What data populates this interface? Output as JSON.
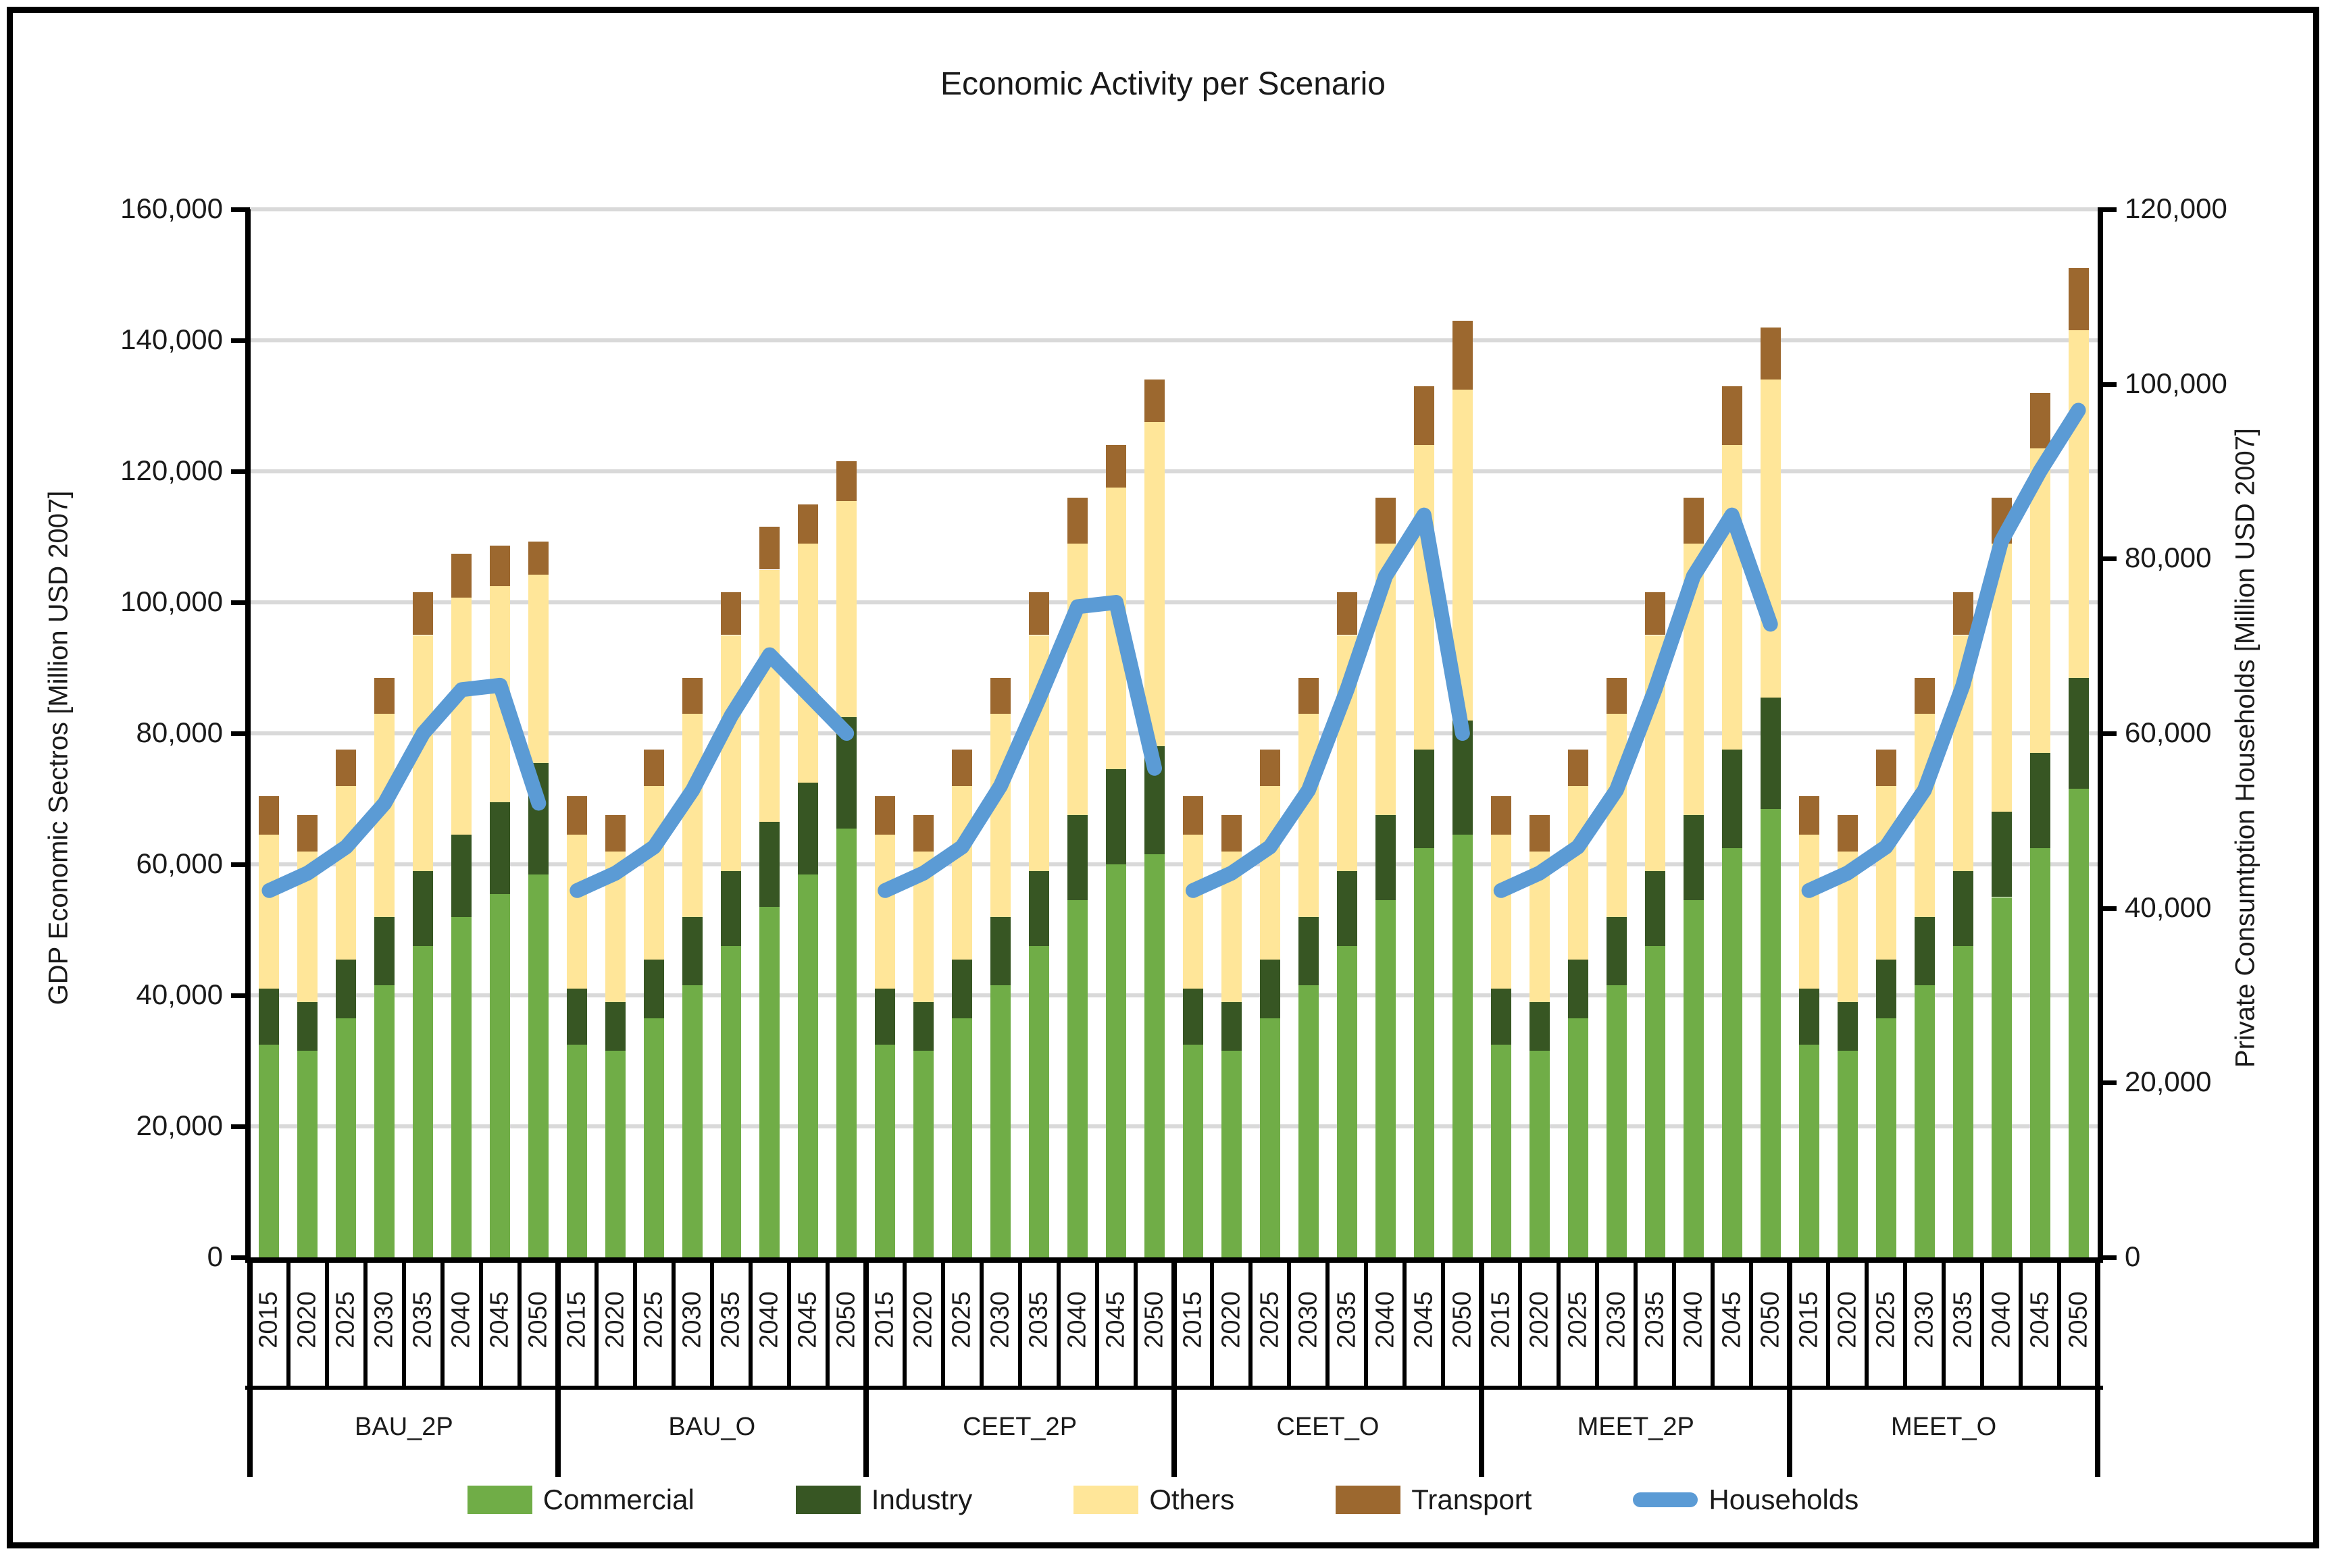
{
  "title": "Economic Activity per Scenario",
  "left_axis": {
    "label": "GDP Economic Sectros [Million USD 2007]",
    "max": 160000,
    "tick_step": 20000,
    "ticks": [
      "160,000",
      "140,000",
      "120,000",
      "100,000",
      "80,000",
      "60,000",
      "40,000",
      "20,000",
      "0"
    ]
  },
  "right_axis": {
    "label": "Private Consumtption Households [Million USD 2007]",
    "max": 120000,
    "tick_step": 20000,
    "ticks": [
      "120,000",
      "100,000",
      "80,000",
      "60,000",
      "40,000",
      "20,000",
      "0"
    ]
  },
  "legend": [
    {
      "label": "Commercial",
      "color": "#70AD47",
      "shape": "box"
    },
    {
      "label": "Industry",
      "color": "#375623",
      "shape": "box"
    },
    {
      "label": "Others",
      "color": "#FFE699",
      "shape": "box"
    },
    {
      "label": "Transport",
      "color": "#9C682F",
      "shape": "box"
    },
    {
      "label": "Households",
      "color": "#5B9BD5",
      "shape": "line"
    }
  ],
  "chart_data": {
    "type": "bar",
    "subtype": "stacked-bars-with-line",
    "title": "Economic Activity per Scenario",
    "xlabel": "",
    "ylabel_left": "GDP Economic Sectros [Million USD 2007]",
    "ylabel_right": "Private Consumtption Households [Million USD 2007]",
    "ylim_left": [
      0,
      160000
    ],
    "ylim_right": [
      0,
      120000
    ],
    "grid": true,
    "legend_position": "bottom",
    "categories": [
      "2015",
      "2020",
      "2025",
      "2030",
      "2035",
      "2040",
      "2045",
      "2050"
    ],
    "bar_series_names": [
      "Commercial",
      "Industry",
      "Others",
      "Transport"
    ],
    "line_series_name": "Households",
    "colors": {
      "Commercial": "#70AD47",
      "Industry": "#375623",
      "Others": "#FFE699",
      "Transport": "#9C682F",
      "Households": "#5B9BD5",
      "gridline": "#D9D9D9",
      "axis": "#000000"
    },
    "groups": [
      {
        "name": "BAU_2P",
        "commercial": [
          32500,
          31500,
          36500,
          41500,
          47500,
          52000,
          55500,
          58500
        ],
        "industry": [
          8500,
          7500,
          9000,
          10500,
          11500,
          12500,
          14000,
          17000
        ],
        "others": [
          23500,
          23000,
          26500,
          31000,
          36000,
          36200,
          33000,
          28700
        ],
        "transport": [
          5900,
          5500,
          5500,
          5500,
          6500,
          6700,
          6200,
          5100
        ],
        "households": [
          42000,
          44000,
          47000,
          52000,
          60000,
          65000,
          65500,
          52000
        ]
      },
      {
        "name": "BAU_O",
        "commercial": [
          32500,
          31500,
          36500,
          41500,
          47500,
          53500,
          58500,
          65500
        ],
        "industry": [
          8500,
          7500,
          9000,
          10500,
          11500,
          13000,
          14000,
          17000
        ],
        "others": [
          23500,
          23000,
          26500,
          31000,
          36000,
          38500,
          36500,
          33000
        ],
        "transport": [
          5900,
          5500,
          5500,
          5500,
          6500,
          6500,
          6000,
          6000
        ],
        "households": [
          42000,
          44000,
          47000,
          53500,
          62000,
          69000,
          64500,
          60000
        ]
      },
      {
        "name": "CEET_2P",
        "commercial": [
          32500,
          31500,
          36500,
          41500,
          47500,
          54500,
          60000,
          61500
        ],
        "industry": [
          8500,
          7500,
          9000,
          10500,
          11500,
          13000,
          14500,
          16500
        ],
        "others": [
          23500,
          23000,
          26500,
          31000,
          36000,
          41500,
          43000,
          49500
        ],
        "transport": [
          5900,
          5500,
          5500,
          5500,
          6500,
          7000,
          6500,
          6500
        ],
        "households": [
          42000,
          44000,
          47000,
          54000,
          64000,
          74500,
          75000,
          56000
        ]
      },
      {
        "name": "CEET_O",
        "commercial": [
          32500,
          31500,
          36500,
          41500,
          47500,
          54500,
          62500,
          64500
        ],
        "industry": [
          8500,
          7500,
          9000,
          10500,
          11500,
          13000,
          15000,
          17500
        ],
        "others": [
          23500,
          23000,
          26500,
          31000,
          36000,
          41500,
          46500,
          50500
        ],
        "transport": [
          5900,
          5500,
          5500,
          5500,
          6500,
          7000,
          9000,
          10500
        ],
        "households": [
          42000,
          44000,
          47000,
          53500,
          65000,
          78000,
          85000,
          60000
        ]
      },
      {
        "name": "MEET_2P",
        "commercial": [
          32500,
          31500,
          36500,
          41500,
          47500,
          54500,
          62500,
          68500
        ],
        "industry": [
          8500,
          7500,
          9000,
          10500,
          11500,
          13000,
          15000,
          17000
        ],
        "others": [
          23500,
          23000,
          26500,
          31000,
          36000,
          41500,
          46500,
          48500
        ],
        "transport": [
          5900,
          5500,
          5500,
          5500,
          6500,
          7000,
          9000,
          8000
        ],
        "households": [
          42000,
          44000,
          47000,
          53500,
          65000,
          78000,
          85000,
          72500
        ]
      },
      {
        "name": "MEET_O",
        "commercial": [
          32500,
          31500,
          36500,
          41500,
          47500,
          55000,
          62500,
          71500
        ],
        "industry": [
          8500,
          7500,
          9000,
          10500,
          11500,
          13000,
          14500,
          17000
        ],
        "others": [
          23500,
          23000,
          26500,
          31000,
          36000,
          41000,
          46500,
          53000
        ],
        "transport": [
          5900,
          5500,
          5500,
          5500,
          6500,
          7000,
          8500,
          9500
        ],
        "households": [
          42000,
          44000,
          47000,
          53500,
          65500,
          82000,
          90000,
          97000
        ]
      }
    ]
  }
}
